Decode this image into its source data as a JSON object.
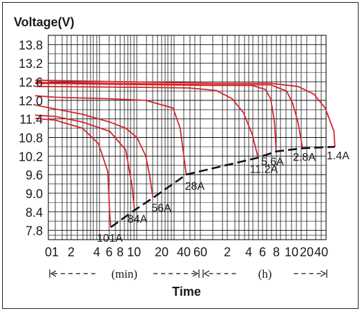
{
  "chart_data": {
    "type": "line",
    "title": "",
    "ylabel": "Voltage(V)",
    "xlabel": "Time",
    "ylim": [
      7.5,
      14.1
    ],
    "yticks": [
      7.8,
      8.4,
      9.0,
      9.6,
      10.2,
      10.8,
      11.4,
      12.0,
      12.6,
      13.2,
      13.8
    ],
    "yticks_labels": [
      "7.8",
      "8.4",
      "9.0",
      "9.6",
      "10.2",
      "10.8",
      "11.4",
      "12.0",
      "12.6",
      "13.2",
      "13.8"
    ],
    "x_scale": "log",
    "x_sections": [
      {
        "unit": "(min)",
        "tick_labels": [
          "0",
          "1",
          "2",
          "4",
          "6",
          "8",
          "10",
          "20",
          "40",
          "60"
        ]
      },
      {
        "unit": "(h)",
        "tick_labels": [
          "2",
          "4",
          "6",
          "8",
          "10",
          "20",
          "40"
        ]
      }
    ],
    "series": [
      {
        "name": "101A",
        "points": [
          [
            0.6,
            11.42
          ],
          [
            1,
            11.36
          ],
          [
            2,
            11.1
          ],
          [
            3,
            10.6
          ],
          [
            3.8,
            9.7
          ],
          [
            4,
            8.3
          ],
          [
            4.1,
            7.9
          ]
        ]
      },
      {
        "name": "84A",
        "points": [
          [
            0.6,
            11.52
          ],
          [
            1,
            11.48
          ],
          [
            2,
            11.3
          ],
          [
            4,
            11.0
          ],
          [
            6,
            10.4
          ],
          [
            7,
            9.3
          ],
          [
            7.5,
            8.45
          ]
        ]
      },
      {
        "name": "56A",
        "points": [
          [
            0.6,
            11.85
          ],
          [
            1,
            11.72
          ],
          [
            2,
            11.55
          ],
          [
            4,
            11.3
          ],
          [
            6,
            11.1
          ],
          [
            8,
            10.8
          ],
          [
            10,
            10.2
          ],
          [
            11,
            9.6
          ],
          [
            12,
            8.85
          ]
        ]
      },
      {
        "name": "28A",
        "points": [
          [
            0.6,
            12.15
          ],
          [
            1,
            12.1
          ],
          [
            4,
            12.05
          ],
          [
            10,
            12.0
          ],
          [
            20,
            11.75
          ],
          [
            24,
            11.1
          ],
          [
            28,
            9.6
          ]
        ]
      },
      {
        "name": "11.2A",
        "points": [
          [
            0.6,
            12.45
          ],
          [
            10,
            12.42
          ],
          [
            30,
            12.4
          ],
          [
            60,
            12.32
          ],
          [
            90,
            12.05
          ],
          [
            120,
            11.6
          ],
          [
            150,
            10.9
          ],
          [
            174,
            10.15
          ]
        ]
      },
      {
        "name": "5.6A",
        "points": [
          [
            0.6,
            12.55
          ],
          [
            60,
            12.48
          ],
          [
            150,
            12.48
          ],
          [
            210,
            12.35
          ],
          [
            240,
            12.05
          ],
          [
            264,
            11.3
          ],
          [
            276,
            10.35
          ]
        ]
      },
      {
        "name": "2.8A",
        "points": [
          [
            0.6,
            12.58
          ],
          [
            60,
            12.5
          ],
          [
            240,
            12.5
          ],
          [
            360,
            12.3
          ],
          [
            420,
            11.9
          ],
          [
            480,
            11.3
          ],
          [
            540,
            10.45
          ]
        ]
      },
      {
        "name": "1.4A",
        "points": [
          [
            0.6,
            12.65
          ],
          [
            60,
            12.55
          ],
          [
            240,
            12.55
          ],
          [
            480,
            12.45
          ],
          [
            720,
            12.2
          ],
          [
            960,
            11.75
          ],
          [
            1200,
            11.0
          ],
          [
            1230,
            10.5
          ]
        ]
      }
    ],
    "cutoff_line": {
      "points": [
        [
          4.1,
          7.9
        ],
        [
          7.5,
          8.45
        ],
        [
          12,
          8.85
        ],
        [
          28,
          9.6
        ],
        [
          174,
          10.15
        ],
        [
          276,
          10.35
        ],
        [
          540,
          10.45
        ],
        [
          1230,
          10.5
        ]
      ],
      "style": "dashed"
    },
    "grid": true,
    "legend": "none",
    "colors": {
      "curve": "#d8232a",
      "cutoff": "#111111",
      "grid": "#111111",
      "frame": "#222222"
    }
  }
}
